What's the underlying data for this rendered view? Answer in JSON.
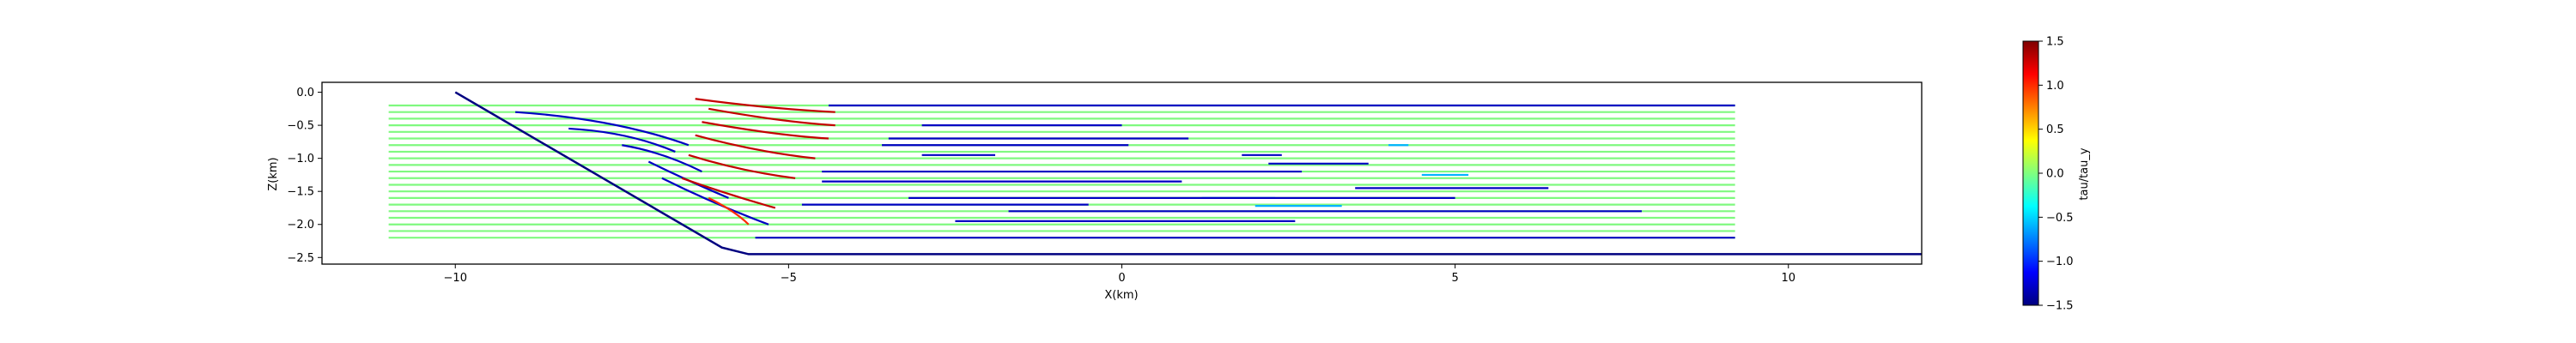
{
  "chart_data": {
    "type": "line",
    "title": "",
    "xlabel": "X(km)",
    "ylabel": "Z(km)",
    "xlim": [
      -12.0,
      12.0
    ],
    "ylim": [
      -2.6,
      0.15
    ],
    "xticks": [
      -10,
      -5,
      0,
      5,
      10
    ],
    "xtick_labels": [
      "−10",
      "−5",
      "0",
      "5",
      "10"
    ],
    "yticks": [
      0.0,
      -0.5,
      -1.0,
      -1.5,
      -2.0,
      -2.5
    ],
    "ytick_labels": [
      "0.0",
      "−0.5",
      "−1.0",
      "−1.5",
      "−2.0",
      "−2.5"
    ],
    "grid": false,
    "colorbar": {
      "label": "tau/tau_y",
      "range": [
        -1.5,
        1.5
      ],
      "ticks": [
        1.5,
        1.0,
        0.5,
        0.0,
        -0.5,
        -1.0,
        -1.5
      ],
      "tick_labels": [
        "1.5",
        "1.0",
        "0.5",
        "0.0",
        "−0.5",
        "−1.0",
        "−1.5"
      ],
      "colormap": "jet"
    },
    "boundary": {
      "name": "basal-boundary",
      "color": "#000080",
      "x": [
        -10.0,
        -6.0,
        -5.6,
        12.0
      ],
      "z": [
        0.0,
        -2.35,
        -2.45,
        -2.45
      ]
    },
    "green_lines": {
      "value": 0.0,
      "color": "#7ff97f",
      "x_start": -11.0,
      "x_end": 9.2,
      "z_tops": [
        -0.2,
        -0.3,
        -0.4,
        -0.5,
        -0.6,
        -0.7,
        -0.8,
        -0.9,
        -1.0,
        -1.1,
        -1.2,
        -1.3,
        -1.4,
        -1.5,
        -1.6,
        -1.7,
        -1.8,
        -1.9,
        -2.0,
        -2.1,
        -2.2
      ]
    },
    "blue_segments": [
      {
        "value": -1.3,
        "x": [
          -4.4,
          9.2
        ],
        "z": -0.2
      },
      {
        "value": -1.3,
        "x": [
          -3.0,
          0.0
        ],
        "z": -0.5
      },
      {
        "value": -1.3,
        "x": [
          -3.5,
          1.0
        ],
        "z": -0.7
      },
      {
        "value": -1.3,
        "x": [
          -3.6,
          0.1
        ],
        "z": -0.8
      },
      {
        "value": -1.3,
        "x": [
          -3.0,
          -1.9
        ],
        "z": -0.95
      },
      {
        "value": -1.3,
        "x": [
          1.8,
          2.4
        ],
        "z": -0.95
      },
      {
        "value": -1.3,
        "x": [
          2.2,
          3.7
        ],
        "z": -1.08
      },
      {
        "value": -1.3,
        "x": [
          -4.5,
          2.7
        ],
        "z": -1.2
      },
      {
        "value": -1.3,
        "x": [
          -4.5,
          0.9
        ],
        "z": -1.35
      },
      {
        "value": -1.3,
        "x": [
          3.5,
          6.4
        ],
        "z": -1.45
      },
      {
        "value": -1.3,
        "x": [
          -3.2,
          5.0
        ],
        "z": -1.6
      },
      {
        "value": -1.3,
        "x": [
          -4.8,
          -0.5
        ],
        "z": -1.7
      },
      {
        "value": -1.3,
        "x": [
          -1.7,
          7.8
        ],
        "z": -1.8
      },
      {
        "value": -1.3,
        "x": [
          -2.5,
          2.6
        ],
        "z": -1.95
      },
      {
        "value": -1.3,
        "x": [
          -5.5,
          9.2
        ],
        "z": -2.2
      }
    ],
    "cyan_segments": [
      {
        "value": -0.6,
        "x": [
          4.0,
          4.3
        ],
        "z": -0.8
      },
      {
        "value": -0.6,
        "x": [
          4.5,
          5.2
        ],
        "z": -1.25
      },
      {
        "value": -0.6,
        "x": [
          1.2,
          2.3
        ],
        "z": -1.6
      },
      {
        "value": -0.6,
        "x": [
          2.0,
          3.3
        ],
        "z": -1.72
      }
    ],
    "bent_lines": [
      {
        "value": -1.3,
        "x": [
          -9.1,
          -7.6,
          -6.5
        ],
        "z": [
          -0.3,
          -0.4,
          -0.8
        ]
      },
      {
        "value": -1.3,
        "x": [
          -8.3,
          -7.4,
          -6.7
        ],
        "z": [
          -0.55,
          -0.6,
          -0.9
        ]
      },
      {
        "value": -1.3,
        "x": [
          -7.5,
          -6.9,
          -6.3
        ],
        "z": [
          -0.8,
          -0.9,
          -1.2
        ]
      },
      {
        "value": -1.3,
        "x": [
          -7.1,
          -6.6,
          -5.9
        ],
        "z": [
          -1.05,
          -1.3,
          -1.6
        ]
      },
      {
        "value": -1.3,
        "x": [
          -6.9,
          -6.1,
          -5.3
        ],
        "z": [
          -1.3,
          -1.7,
          -2.0
        ]
      },
      {
        "value": 1.3,
        "x": [
          -6.4,
          -5.3,
          -4.3
        ],
        "z": [
          -0.1,
          -0.25,
          -0.3
        ]
      },
      {
        "value": 1.3,
        "x": [
          -6.2,
          -5.1,
          -4.3
        ],
        "z": [
          -0.25,
          -0.45,
          -0.5
        ]
      },
      {
        "value": 1.3,
        "x": [
          -6.3,
          -5.2,
          -4.4
        ],
        "z": [
          -0.45,
          -0.65,
          -0.7
        ]
      },
      {
        "value": 1.3,
        "x": [
          -6.4,
          -5.5,
          -4.6
        ],
        "z": [
          -0.65,
          -0.9,
          -1.0
        ]
      },
      {
        "value": 1.3,
        "x": [
          -6.5,
          -5.7,
          -4.9
        ],
        "z": [
          -0.95,
          -1.2,
          -1.3
        ]
      },
      {
        "value": 1.3,
        "x": [
          -6.6,
          -5.9,
          -5.2
        ],
        "z": [
          -1.3,
          -1.55,
          -1.75
        ]
      },
      {
        "value": 1.0,
        "x": [
          -6.2,
          -5.8,
          -5.6
        ],
        "z": [
          -1.6,
          -1.8,
          -2.0
        ]
      }
    ]
  }
}
